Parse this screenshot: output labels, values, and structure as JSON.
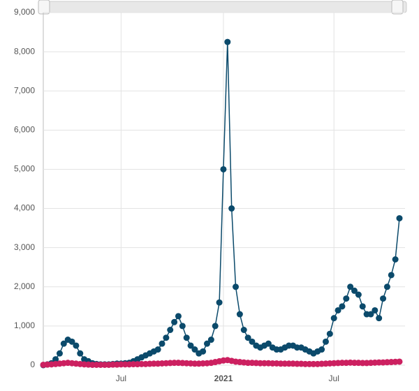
{
  "chart_data": {
    "type": "line",
    "categories": [
      null,
      null,
      null,
      null,
      null,
      null,
      null,
      null,
      null,
      null,
      null,
      null,
      null,
      null,
      null,
      null,
      null,
      null,
      null,
      "Jul",
      null,
      null,
      null,
      null,
      null,
      null,
      null,
      null,
      null,
      null,
      null,
      null,
      null,
      null,
      null,
      null,
      null,
      null,
      null,
      null,
      null,
      null,
      null,
      null,
      "2021",
      null,
      null,
      null,
      null,
      null,
      null,
      null,
      null,
      null,
      null,
      null,
      null,
      null,
      null,
      null,
      null,
      null,
      null,
      null,
      null,
      null,
      null,
      null,
      null,
      null,
      null,
      "Jul",
      null,
      null,
      null,
      null,
      null,
      null,
      null,
      null,
      null,
      null,
      null,
      null,
      null,
      null,
      null,
      null
    ],
    "series": [
      {
        "color": "#0b4a6b",
        "values": [
          0,
          20,
          50,
          150,
          300,
          550,
          650,
          600,
          500,
          300,
          150,
          100,
          50,
          30,
          20,
          20,
          20,
          30,
          40,
          40,
          50,
          60,
          100,
          150,
          200,
          250,
          300,
          350,
          400,
          550,
          700,
          900,
          1100,
          1250,
          1000,
          700,
          500,
          400,
          300,
          350,
          550,
          650,
          1000,
          1600,
          5000,
          8250,
          4000,
          2000,
          1300,
          900,
          700,
          600,
          500,
          450,
          500,
          550,
          450,
          400,
          400,
          450,
          500,
          500,
          450,
          450,
          400,
          350,
          300,
          350,
          400,
          600,
          800,
          1200,
          1400,
          1500,
          1700,
          2000,
          1900,
          1800,
          1500,
          1300,
          1300,
          1400,
          1200,
          1700,
          2000,
          2300,
          2700,
          3750
        ]
      },
      {
        "color": "#cc2060",
        "values": [
          10,
          15,
          20,
          30,
          40,
          50,
          60,
          50,
          40,
          30,
          20,
          15,
          10,
          10,
          10,
          10,
          10,
          15,
          15,
          20,
          20,
          20,
          25,
          25,
          30,
          30,
          35,
          40,
          40,
          45,
          50,
          55,
          60,
          60,
          55,
          50,
          45,
          40,
          40,
          45,
          50,
          60,
          80,
          100,
          120,
          130,
          110,
          90,
          80,
          70,
          60,
          60,
          55,
          50,
          50,
          50,
          45,
          45,
          40,
          40,
          40,
          40,
          35,
          35,
          30,
          30,
          30,
          30,
          35,
          40,
          45,
          50,
          55,
          60,
          60,
          65,
          60,
          60,
          55,
          55,
          60,
          65,
          70,
          70,
          75,
          80,
          85,
          90
        ]
      }
    ],
    "ylim": [
      0,
      9000
    ],
    "yticks": [
      {
        "value": 0,
        "label": "0"
      },
      {
        "value": 1000,
        "label": "1,000"
      },
      {
        "value": 2000,
        "label": "2,000"
      },
      {
        "value": 3000,
        "label": "3,000"
      },
      {
        "value": 4000,
        "label": "4,000"
      },
      {
        "value": 5000,
        "label": "5,000"
      },
      {
        "value": 6000,
        "label": "6,000"
      },
      {
        "value": 7000,
        "label": "7,000"
      },
      {
        "value": 8000,
        "label": "8,000"
      },
      {
        "value": 9000,
        "label": "9,000"
      }
    ],
    "grid": true
  }
}
